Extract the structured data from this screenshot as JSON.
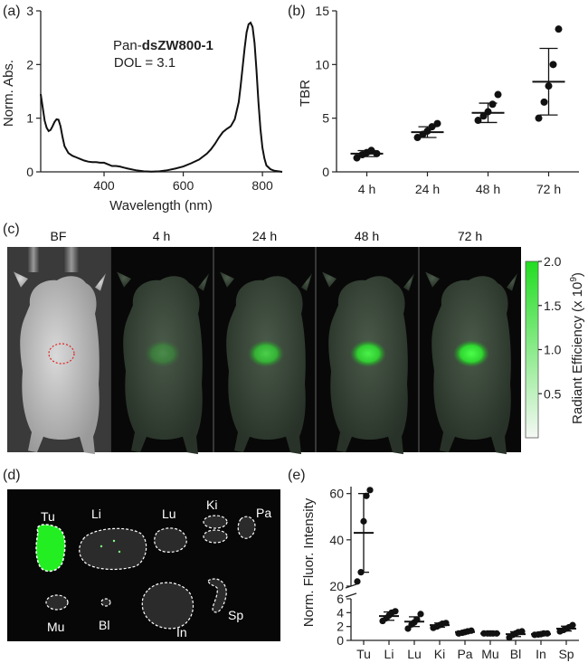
{
  "panel_labels": {
    "a": "(a)",
    "b": "(b)",
    "c": "(c)",
    "d": "(d)",
    "e": "(e)"
  },
  "chart_data": [
    {
      "panel": "a",
      "type": "line",
      "annotation_prefix": "Pan-",
      "annotation_bold": "dsZW800-1",
      "annotation_line2": "DOL = 3.1",
      "xlabel": "Wavelength (nm)",
      "ylabel": "Norm. Abs.",
      "xlim": [
        240,
        850
      ],
      "ylim": [
        0,
        3
      ],
      "xticks": [
        "400",
        "600",
        "800"
      ],
      "xtick_values": [
        400,
        600,
        800
      ],
      "yticks": [
        "0",
        "1",
        "2",
        "3"
      ],
      "yticks_values": [
        0,
        1,
        2,
        3
      ],
      "x": [
        240,
        245,
        250,
        255,
        260,
        265,
        270,
        275,
        280,
        285,
        290,
        295,
        300,
        310,
        320,
        330,
        340,
        350,
        360,
        370,
        380,
        390,
        400,
        410,
        420,
        430,
        440,
        450,
        460,
        480,
        500,
        520,
        540,
        560,
        580,
        600,
        620,
        640,
        660,
        670,
        680,
        690,
        700,
        710,
        720,
        730,
        740,
        745,
        750,
        755,
        760,
        765,
        770,
        775,
        780,
        785,
        790,
        795,
        800,
        805,
        810,
        820,
        830,
        840,
        850
      ],
      "y": [
        1.45,
        1.2,
        0.95,
        0.82,
        0.76,
        0.78,
        0.85,
        0.93,
        0.98,
        0.97,
        0.85,
        0.65,
        0.48,
        0.35,
        0.3,
        0.27,
        0.24,
        0.21,
        0.19,
        0.18,
        0.18,
        0.17,
        0.17,
        0.14,
        0.11,
        0.11,
        0.1,
        0.08,
        0.06,
        0.03,
        0.01,
        0.005,
        0.01,
        0.03,
        0.06,
        0.1,
        0.16,
        0.23,
        0.34,
        0.42,
        0.52,
        0.64,
        0.74,
        0.8,
        0.85,
        0.98,
        1.3,
        1.6,
        1.95,
        2.3,
        2.6,
        2.75,
        2.78,
        2.7,
        2.4,
        1.9,
        1.3,
        0.8,
        0.45,
        0.25,
        0.12,
        0.05,
        0.02,
        0.01,
        0.0
      ]
    },
    {
      "panel": "b",
      "type": "scatter",
      "ylabel": "TBR",
      "categories": [
        "4 h",
        "24 h",
        "48 h",
        "72 h"
      ],
      "ylim": [
        0,
        15
      ],
      "yticks": [
        "0",
        "5",
        "10",
        "15"
      ],
      "yticks_values": [
        0,
        5,
        10,
        15
      ],
      "points": [
        [
          1.3,
          1.6,
          1.8,
          2.0,
          1.7
        ],
        [
          3.2,
          3.5,
          3.8,
          4.2,
          4.5
        ],
        [
          4.8,
          5.2,
          5.6,
          6.3,
          7.2
        ],
        [
          5.0,
          6.5,
          8.0,
          10.0,
          13.3
        ]
      ],
      "mean": [
        1.7,
        3.7,
        5.5,
        8.4
      ],
      "sd": [
        0.28,
        0.5,
        0.9,
        3.1
      ]
    },
    {
      "panel": "e",
      "type": "scatter",
      "ylabel": "Norm. Fluor. Intensity",
      "categories": [
        "Tu",
        "Li",
        "Lu",
        "Ki",
        "Pa",
        "Mu",
        "Bl",
        "In",
        "Sp"
      ],
      "ylim_upper": [
        20,
        63
      ],
      "ylim_lower": [
        0,
        6
      ],
      "yticks_upper": [
        "20",
        "40",
        "60"
      ],
      "yticks_upper_values": [
        20,
        40,
        60
      ],
      "yticks_lower": [
        "0",
        "2",
        "4",
        "6"
      ],
      "yticks_lower_values": [
        0,
        2,
        4,
        6
      ],
      "points": [
        [
          22,
          26,
          48,
          59,
          61.5
        ],
        [
          2.8,
          3.2,
          3.6,
          4.0,
          4.2
        ],
        [
          1.7,
          2.3,
          2.6,
          3.0,
          3.8
        ],
        [
          1.8,
          2.0,
          2.2,
          2.4,
          2.5
        ],
        [
          1.0,
          1.1,
          1.2,
          1.3,
          1.4
        ],
        [
          1.0,
          1.0,
          1.0,
          1.0,
          1.0
        ],
        [
          0.4,
          0.8,
          1.0,
          1.2,
          1.3
        ],
        [
          0.8,
          0.85,
          0.9,
          1.0,
          1.0
        ],
        [
          1.3,
          1.5,
          1.7,
          1.9,
          2.2
        ]
      ],
      "mean": [
        43,
        3.5,
        2.7,
        2.2,
        1.2,
        1.0,
        0.9,
        0.9,
        1.7
      ],
      "sd": [
        17,
        0.6,
        0.7,
        0.3,
        0.15,
        0.05,
        0.35,
        0.1,
        0.35
      ]
    }
  ],
  "imaging": {
    "labels": [
      "BF",
      "4 h",
      "24 h",
      "48 h",
      "72 h"
    ],
    "tumor_intensity": [
      0,
      0.3,
      0.72,
      0.92,
      1.0
    ],
    "colorbar": {
      "label": "Radiant Efficiency (x 10",
      "exponent": "9",
      "label_suffix": ")",
      "ticks": [
        "2.0",
        "1.5",
        "1.0",
        "0.5"
      ],
      "tick_values": [
        2.0,
        1.5,
        1.0,
        0.5
      ],
      "min": 0,
      "max": 2.0,
      "color": "#2ee62e"
    }
  },
  "organs": {
    "labels": [
      "Tu",
      "Li",
      "Lu",
      "Ki",
      "Pa",
      "Mu",
      "Bl",
      "In",
      "Sp"
    ]
  }
}
